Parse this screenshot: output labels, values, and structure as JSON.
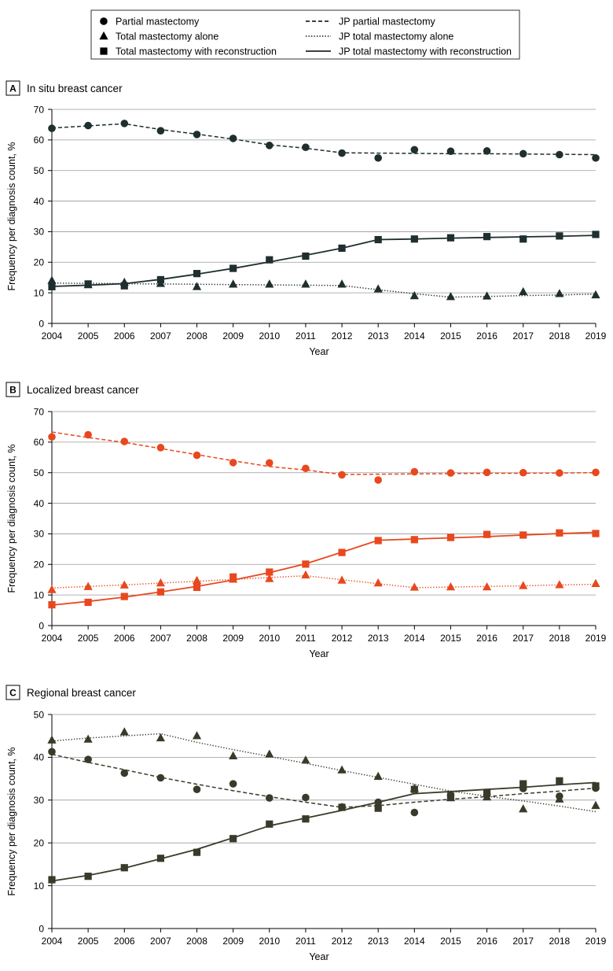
{
  "legend": {
    "items": [
      {
        "label": "Partial mastectomy",
        "marker": "circle"
      },
      {
        "label": "Total mastectomy alone",
        "marker": "triangle"
      },
      {
        "label": "Total mastectomy with reconstruction",
        "marker": "square"
      },
      {
        "label": "JP partial mastectomy",
        "line": "dashed"
      },
      {
        "label": "JP total mastectomy alone",
        "line": "dotted"
      },
      {
        "label": "JP total mastectomy with reconstruction",
        "line": "solid"
      }
    ]
  },
  "chart_data": [
    {
      "type": "line",
      "panel": "A",
      "title": "In situ breast cancer",
      "color": "#1f2e2e",
      "xlabel": "Year",
      "ylabel": "Frequency per diagnosis count, %",
      "ylim": [
        0,
        70
      ],
      "yticks": [
        0,
        10,
        20,
        30,
        40,
        50,
        60,
        70
      ],
      "x": [
        2004,
        2005,
        2006,
        2007,
        2008,
        2009,
        2010,
        2011,
        2012,
        2013,
        2014,
        2015,
        2016,
        2017,
        2018,
        2019
      ],
      "series": [
        {
          "name": "Partial mastectomy",
          "kind": "points",
          "marker": "circle",
          "values": [
            63.8,
            64.7,
            65.4,
            63.0,
            61.8,
            60.5,
            58.2,
            57.6,
            55.7,
            54.1,
            56.8,
            56.3,
            56.4,
            55.5,
            55.2,
            54.1
          ]
        },
        {
          "name": "Total mastectomy alone",
          "kind": "points",
          "marker": "triangle",
          "values": [
            14.0,
            12.6,
            13.4,
            13.0,
            12.0,
            12.8,
            12.8,
            12.8,
            12.8,
            11.2,
            9.0,
            8.7,
            8.9,
            10.3,
            9.7,
            9.3
          ]
        },
        {
          "name": "Total mastectomy with reconstruction",
          "kind": "points",
          "marker": "square",
          "values": [
            12.0,
            12.9,
            12.3,
            14.3,
            16.3,
            18.0,
            20.8,
            22.0,
            24.6,
            27.4,
            27.6,
            28.0,
            28.4,
            27.6,
            28.6,
            29.1
          ]
        },
        {
          "name": "JP partial mastectomy",
          "kind": "line",
          "dash": "dashed",
          "values": [
            63.9,
            64.6,
            65.3,
            63.4,
            61.9,
            60.3,
            58.4,
            57.3,
            55.8,
            55.7,
            55.6,
            55.5,
            55.5,
            55.4,
            55.3,
            55.2
          ]
        },
        {
          "name": "JP total mastectomy alone",
          "kind": "line",
          "dash": "dotted",
          "values": [
            13.2,
            13.1,
            13.0,
            12.9,
            12.8,
            12.7,
            12.6,
            12.5,
            12.4,
            11.0,
            9.7,
            8.6,
            8.8,
            9.1,
            9.3,
            9.6
          ]
        },
        {
          "name": "JP total mastectomy with reconstruction",
          "kind": "line",
          "dash": "solid",
          "values": [
            12.1,
            12.5,
            13.0,
            14.4,
            16.1,
            18.0,
            20.1,
            22.3,
            24.6,
            27.4,
            27.6,
            27.9,
            28.1,
            28.3,
            28.5,
            28.8
          ]
        }
      ]
    },
    {
      "type": "line",
      "panel": "B",
      "title": "Localized breast cancer",
      "color": "#e8481e",
      "xlabel": "Year",
      "ylabel": "Frequency per diagnosis count, %",
      "ylim": [
        0,
        70
      ],
      "yticks": [
        0,
        10,
        20,
        30,
        40,
        50,
        60,
        70
      ],
      "x": [
        2004,
        2005,
        2006,
        2007,
        2008,
        2009,
        2010,
        2011,
        2012,
        2013,
        2014,
        2015,
        2016,
        2017,
        2018,
        2019
      ],
      "series": [
        {
          "name": "Partial mastectomy",
          "kind": "points",
          "marker": "circle",
          "values": [
            61.7,
            62.4,
            60.2,
            58.2,
            55.7,
            53.3,
            53.2,
            51.4,
            49.3,
            47.6,
            50.3,
            49.9,
            50.1,
            50.0,
            49.9,
            50.1
          ]
        },
        {
          "name": "Total mastectomy alone",
          "kind": "points",
          "marker": "triangle",
          "values": [
            11.7,
            12.7,
            13.2,
            13.9,
            14.7,
            15.1,
            15.3,
            16.5,
            14.8,
            13.9,
            12.5,
            12.6,
            12.6,
            13.0,
            13.3,
            13.7
          ]
        },
        {
          "name": "Total mastectomy with reconstruction",
          "kind": "points",
          "marker": "square",
          "values": [
            6.8,
            7.6,
            9.5,
            11.0,
            12.5,
            15.9,
            17.5,
            20.1,
            23.9,
            27.8,
            28.1,
            28.8,
            29.8,
            29.6,
            30.3,
            30.1
          ]
        },
        {
          "name": "JP partial mastectomy",
          "kind": "line",
          "dash": "dashed",
          "values": [
            63.3,
            61.5,
            59.9,
            57.9,
            55.9,
            53.9,
            52.0,
            50.9,
            49.4,
            49.5,
            49.6,
            49.7,
            49.8,
            49.8,
            49.9,
            50.0
          ]
        },
        {
          "name": "JP total mastectomy alone",
          "kind": "line",
          "dash": "dotted",
          "values": [
            12.3,
            12.8,
            13.3,
            13.9,
            14.5,
            15.1,
            15.7,
            16.3,
            15.0,
            13.7,
            12.4,
            12.6,
            12.8,
            13.0,
            13.3,
            13.5
          ]
        },
        {
          "name": "JP total mastectomy with reconstruction",
          "kind": "line",
          "dash": "solid",
          "values": [
            6.7,
            7.9,
            9.3,
            11.0,
            12.8,
            14.9,
            17.3,
            20.2,
            24.0,
            27.9,
            28.3,
            28.7,
            29.1,
            29.6,
            30.1,
            30.5
          ]
        }
      ]
    },
    {
      "type": "line",
      "panel": "C",
      "title": "Regional breast cancer",
      "color": "#3a3a2a",
      "xlabel": "Year",
      "ylabel": "Frequency per diagnosis count, %",
      "ylim": [
        0,
        50
      ],
      "yticks": [
        0,
        10,
        20,
        30,
        40,
        50
      ],
      "x": [
        2004,
        2005,
        2006,
        2007,
        2008,
        2009,
        2010,
        2011,
        2012,
        2013,
        2014,
        2015,
        2016,
        2017,
        2018,
        2019
      ],
      "series": [
        {
          "name": "Partial mastectomy",
          "kind": "points",
          "marker": "circle",
          "values": [
            41.3,
            39.5,
            36.3,
            35.2,
            32.5,
            33.8,
            30.5,
            30.6,
            28.4,
            29.5,
            27.1,
            31.1,
            31.3,
            32.7,
            30.9,
            32.8
          ]
        },
        {
          "name": "Total mastectomy alone",
          "kind": "points",
          "marker": "triangle",
          "values": [
            44.0,
            44.2,
            45.9,
            44.5,
            45.0,
            40.3,
            40.7,
            39.3,
            37.0,
            35.5,
            32.7,
            30.5,
            30.7,
            27.9,
            30.2,
            28.7
          ]
        },
        {
          "name": "Total mastectomy with reconstruction",
          "kind": "points",
          "marker": "square",
          "values": [
            11.4,
            12.2,
            14.2,
            16.4,
            17.8,
            21.0,
            24.4,
            25.6,
            28.3,
            28.1,
            32.5,
            30.9,
            31.8,
            33.8,
            34.5,
            33.3
          ]
        },
        {
          "name": "JP partial mastectomy",
          "kind": "line",
          "dash": "dashed",
          "values": [
            40.7,
            38.8,
            37.1,
            35.3,
            33.7,
            32.2,
            30.8,
            29.5,
            28.3,
            28.7,
            29.5,
            30.2,
            30.8,
            31.5,
            32.1,
            32.8
          ]
        },
        {
          "name": "JP total mastectomy alone",
          "kind": "line",
          "dash": "dotted",
          "values": [
            43.8,
            44.5,
            45.0,
            45.5,
            43.5,
            41.8,
            40.2,
            38.6,
            36.9,
            35.3,
            33.7,
            32.1,
            30.9,
            29.8,
            28.6,
            27.3
          ]
        },
        {
          "name": "JP total mastectomy with reconstruction",
          "kind": "line",
          "dash": "solid",
          "values": [
            11.1,
            12.4,
            14.1,
            16.3,
            18.5,
            21.2,
            24.0,
            25.8,
            27.6,
            29.5,
            31.5,
            32.0,
            32.5,
            33.0,
            33.6,
            34.1
          ]
        }
      ]
    }
  ]
}
